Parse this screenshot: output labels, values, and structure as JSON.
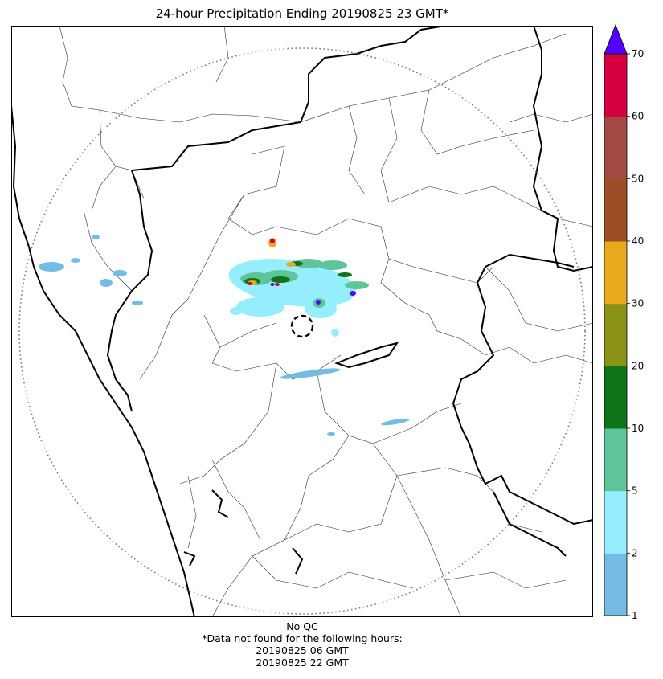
{
  "title": "24-hour Precipitation Ending 20190825 23 GMT*",
  "colorbar": {
    "bins": [
      {
        "from": 1,
        "to": 2,
        "color": "#74bce4"
      },
      {
        "from": 2,
        "to": 5,
        "color": "#94eefd"
      },
      {
        "from": 5,
        "to": 10,
        "color": "#5ec59a"
      },
      {
        "from": 10,
        "to": 20,
        "color": "#0f7318"
      },
      {
        "from": 20,
        "to": 30,
        "color": "#8b9317"
      },
      {
        "from": 30,
        "to": 40,
        "color": "#e8a91b"
      },
      {
        "from": 40,
        "to": 50,
        "color": "#9e4e27"
      },
      {
        "from": 50,
        "to": 60,
        "color": "#a54a43"
      },
      {
        "from": 60,
        "to": 70,
        "color": "#d40040"
      }
    ],
    "extend_color": "#5500ff",
    "ticks": [
      "1",
      "2",
      "5",
      "10",
      "20",
      "30",
      "40",
      "50",
      "60",
      "70"
    ]
  },
  "notes": {
    "qc": "No QC",
    "missing_header": "*Data not found for the following hours:",
    "missing_hours": [
      "20190825 06 GMT",
      "20190825 22 GMT"
    ]
  }
}
